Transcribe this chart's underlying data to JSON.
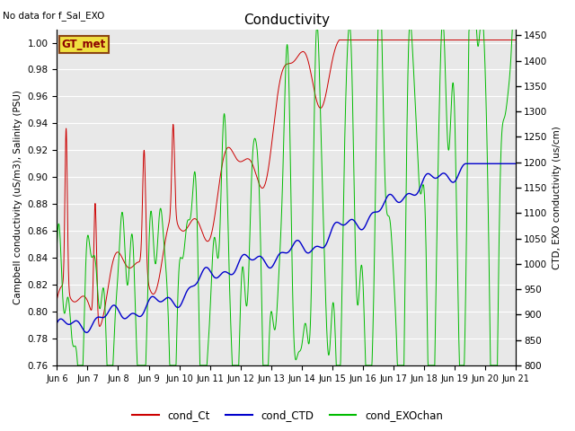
{
  "title": "Conductivity",
  "title_x": "No data for f_Sal_EXO",
  "ylabel_left": "Campbell conductivity (uS/m3), Salinity (PSU)",
  "ylabel_right": "CTD, EXO conductivity (us/cm)",
  "xlabel_ticks": [
    "Jun 6",
    "Jun 7",
    "Jun 8",
    "Jun 9",
    "Jun 10",
    "Jun 11",
    "Jun 12",
    "Jun 13",
    "Jun 14",
    "Jun 15",
    "Jun 16",
    "Jun 17",
    "Jun 18",
    "Jun 19",
    "Jun 20",
    "Jun 21"
  ],
  "ylim_left": [
    0.76,
    1.01
  ],
  "ylim_right": [
    800,
    1462
  ],
  "yticks_left": [
    0.76,
    0.78,
    0.8,
    0.82,
    0.84,
    0.86,
    0.88,
    0.9,
    0.92,
    0.94,
    0.96,
    0.98,
    1.0
  ],
  "yticks_right": [
    800,
    850,
    900,
    950,
    1000,
    1050,
    1100,
    1150,
    1200,
    1250,
    1300,
    1350,
    1400,
    1450
  ],
  "legend_labels": [
    "cond_Ct",
    "cond_CTD",
    "cond_EXOchan"
  ],
  "color_cond_Ct": "#cc0000",
  "color_cond_CTD": "#0000cc",
  "color_cond_EXO": "#00bb00",
  "annotation_box": "GT_met",
  "plot_bg": "#e8e8e8",
  "grid_color": "#ffffff",
  "fig_bg": "#ffffff"
}
